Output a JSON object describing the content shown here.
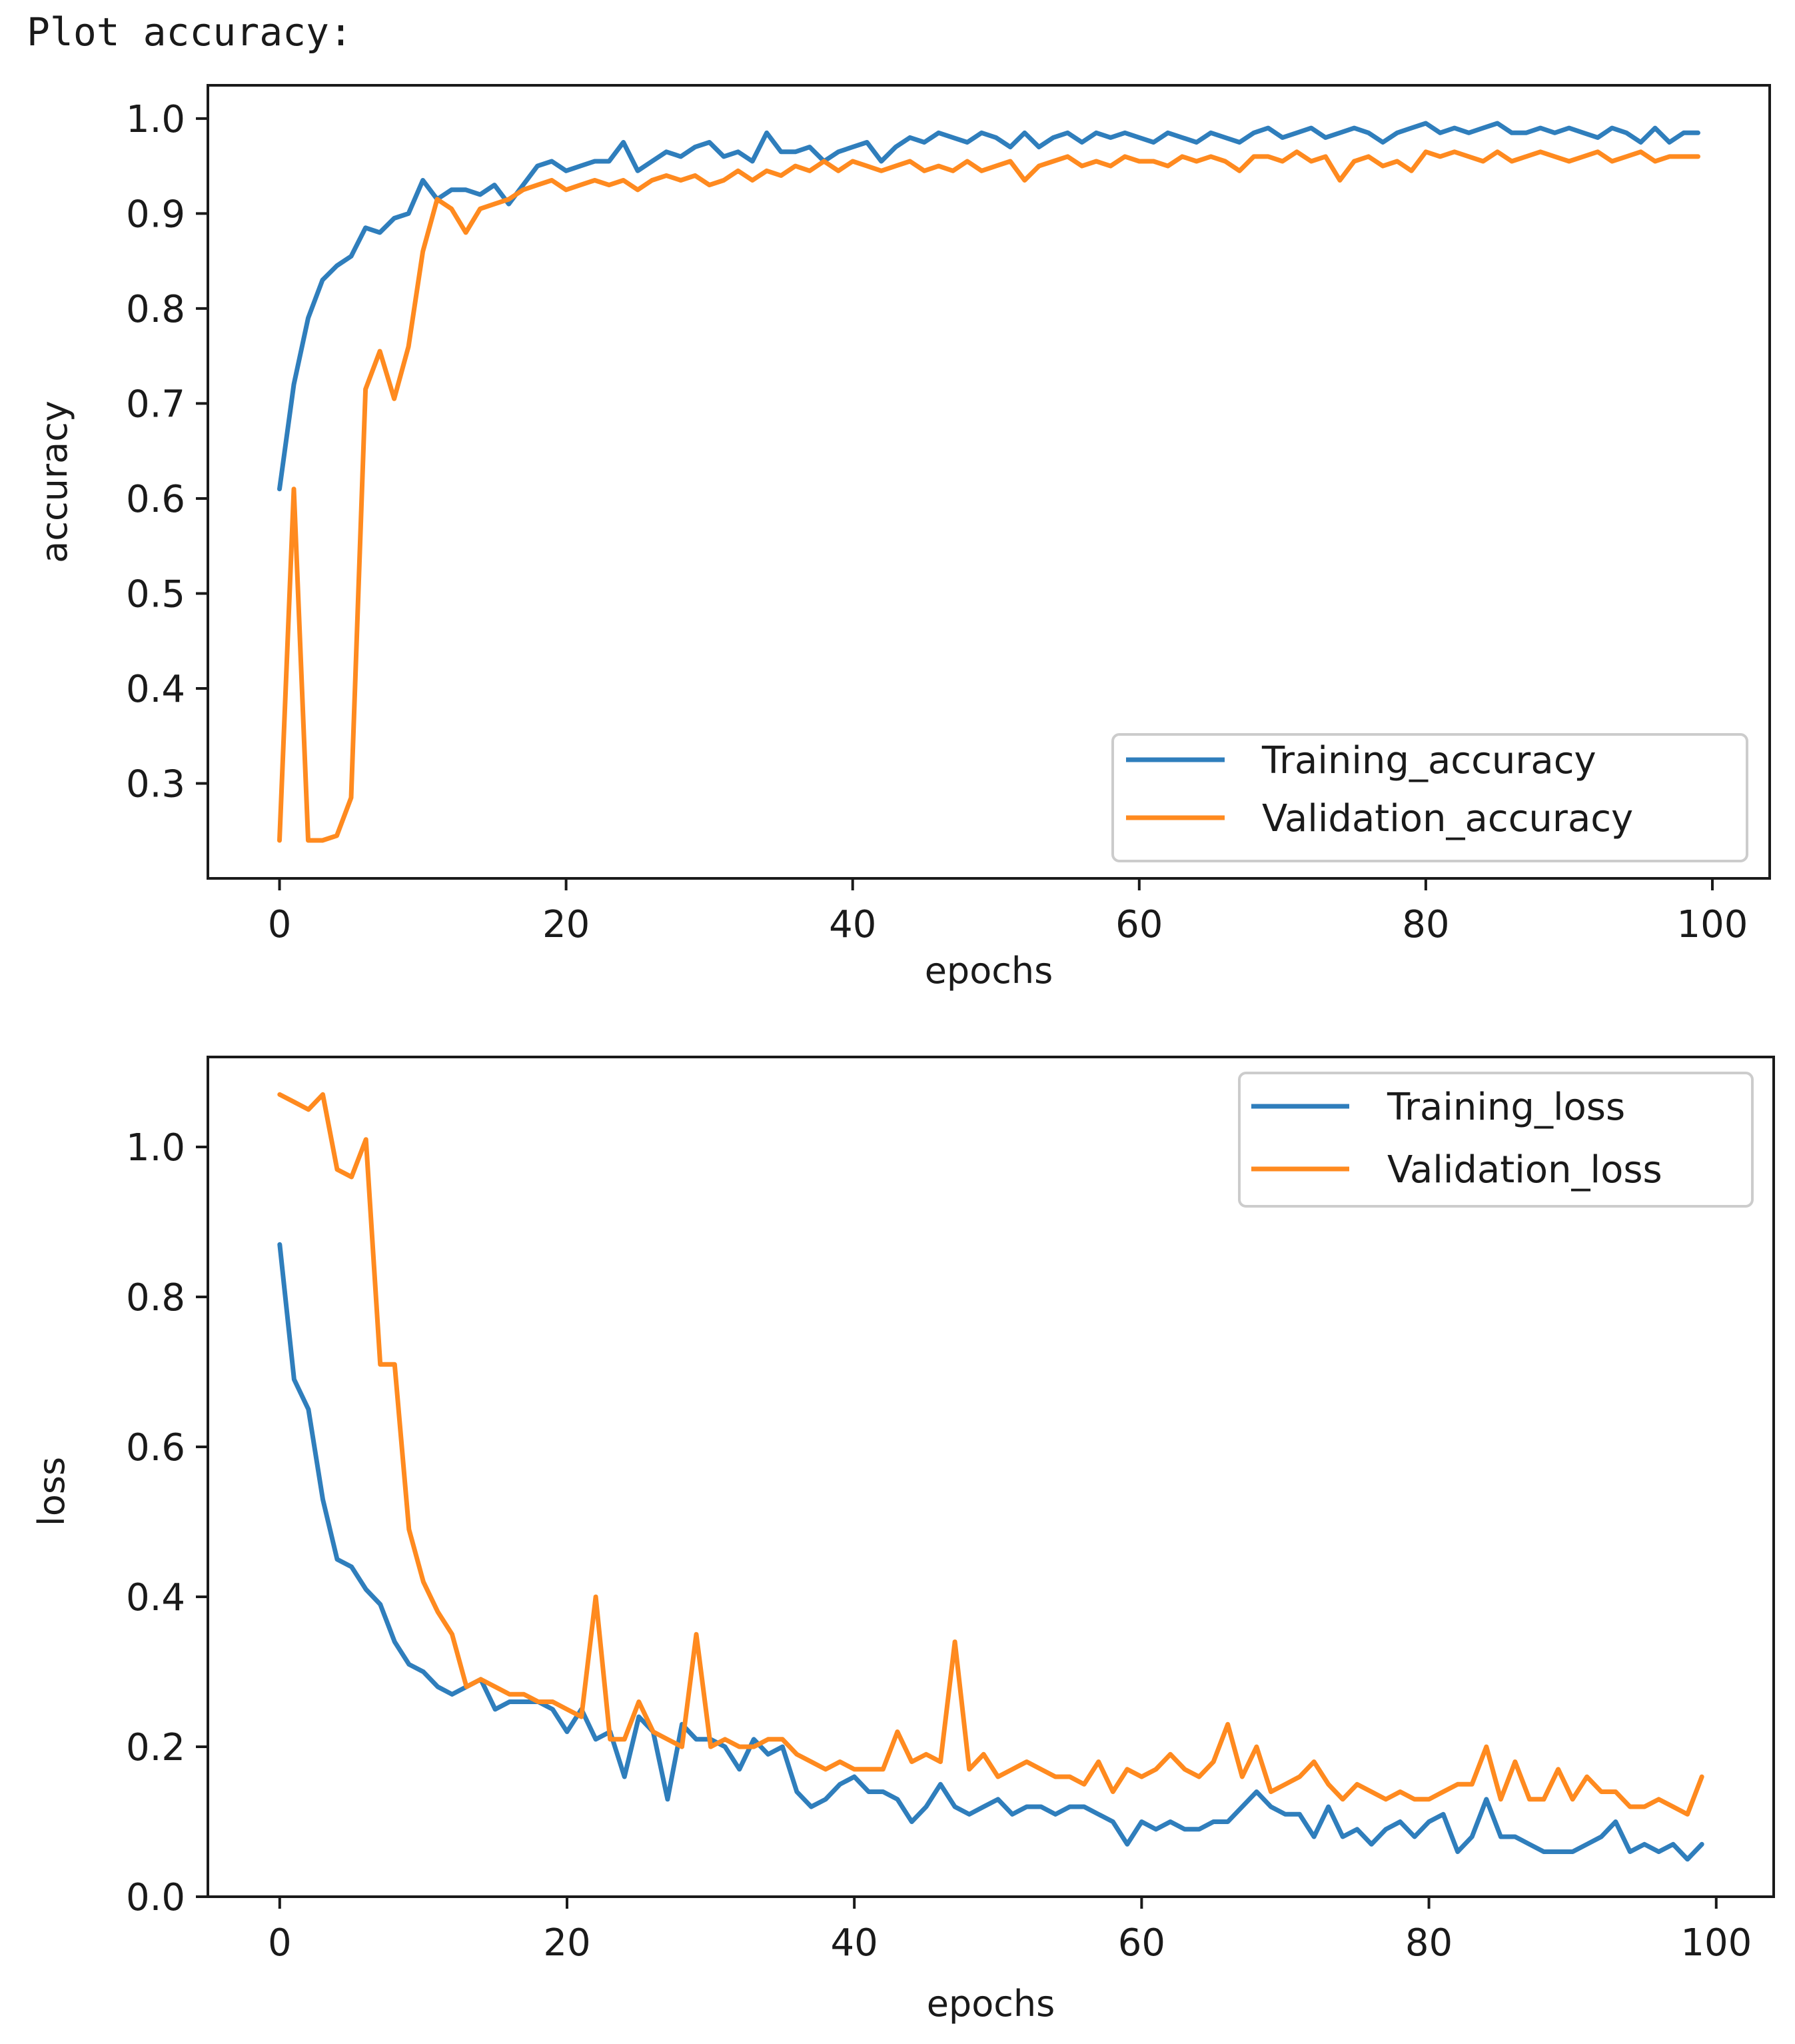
{
  "heading": "Plot accuracy:",
  "colors": {
    "training": "#2f7ebc",
    "validation": "#ff8a1f"
  },
  "chart_data": [
    {
      "id": "accuracy",
      "type": "line",
      "title": "",
      "xlabel": "epochs",
      "ylabel": "accuracy",
      "xlim": [
        -5,
        104
      ],
      "ylim": [
        0.2,
        1.035
      ],
      "xticks": [
        0,
        20,
        40,
        60,
        80,
        100
      ],
      "yticks": [
        0.3,
        0.4,
        0.5,
        0.6,
        0.7,
        0.8,
        0.9,
        1.0
      ],
      "legend_position": "lower-right",
      "series": [
        {
          "name": "Training_accuracy",
          "color_key": "training",
          "values": [
            0.61,
            0.72,
            0.79,
            0.83,
            0.845,
            0.855,
            0.885,
            0.88,
            0.895,
            0.9,
            0.935,
            0.915,
            0.925,
            0.925,
            0.92,
            0.93,
            0.91,
            0.93,
            0.95,
            0.955,
            0.945,
            0.95,
            0.955,
            0.955,
            0.975,
            0.945,
            0.955,
            0.965,
            0.96,
            0.97,
            0.975,
            0.96,
            0.965,
            0.955,
            0.985,
            0.965,
            0.965,
            0.97,
            0.955,
            0.965,
            0.97,
            0.975,
            0.955,
            0.97,
            0.98,
            0.975,
            0.985,
            0.98,
            0.975,
            0.985,
            0.98,
            0.97,
            0.985,
            0.97,
            0.98,
            0.985,
            0.975,
            0.985,
            0.98,
            0.985,
            0.98,
            0.975,
            0.985,
            0.98,
            0.975,
            0.985,
            0.98,
            0.975,
            0.985,
            0.99,
            0.98,
            0.985,
            0.99,
            0.98,
            0.985,
            0.99,
            0.985,
            0.975,
            0.985,
            0.99,
            0.995,
            0.985,
            0.99,
            0.985,
            0.99,
            0.995,
            0.985,
            0.985,
            0.99,
            0.985,
            0.99,
            0.985,
            0.98,
            0.99,
            0.985,
            0.975,
            0.99,
            0.975,
            0.985,
            0.985
          ]
        },
        {
          "name": "Validation_accuracy",
          "color_key": "validation",
          "values": [
            0.24,
            0.61,
            0.24,
            0.24,
            0.245,
            0.285,
            0.715,
            0.755,
            0.705,
            0.76,
            0.86,
            0.915,
            0.905,
            0.88,
            0.905,
            0.91,
            0.915,
            0.925,
            0.93,
            0.935,
            0.925,
            0.93,
            0.935,
            0.93,
            0.935,
            0.925,
            0.935,
            0.94,
            0.935,
            0.94,
            0.93,
            0.935,
            0.945,
            0.935,
            0.945,
            0.94,
            0.95,
            0.945,
            0.955,
            0.945,
            0.955,
            0.95,
            0.945,
            0.95,
            0.955,
            0.945,
            0.95,
            0.945,
            0.955,
            0.945,
            0.95,
            0.955,
            0.935,
            0.95,
            0.955,
            0.96,
            0.95,
            0.955,
            0.95,
            0.96,
            0.955,
            0.955,
            0.95,
            0.96,
            0.955,
            0.96,
            0.955,
            0.945,
            0.96,
            0.96,
            0.955,
            0.965,
            0.955,
            0.96,
            0.935,
            0.955,
            0.96,
            0.95,
            0.955,
            0.945,
            0.965,
            0.96,
            0.965,
            0.96,
            0.955,
            0.965,
            0.955,
            0.96,
            0.965,
            0.96,
            0.955,
            0.96,
            0.965,
            0.955,
            0.96,
            0.965,
            0.955,
            0.96,
            0.96,
            0.96
          ]
        }
      ]
    },
    {
      "id": "loss",
      "type": "line",
      "title": "",
      "xlabel": "epochs",
      "ylabel": "loss",
      "xlim": [
        -5,
        104
      ],
      "ylim": [
        0.0,
        1.12
      ],
      "xticks": [
        0,
        20,
        40,
        60,
        80,
        100
      ],
      "yticks": [
        0.0,
        0.2,
        0.4,
        0.6,
        0.8,
        1.0
      ],
      "legend_position": "upper-right",
      "series": [
        {
          "name": "Training_loss",
          "color_key": "training",
          "values": [
            0.87,
            0.69,
            0.65,
            0.53,
            0.45,
            0.44,
            0.41,
            0.39,
            0.34,
            0.31,
            0.3,
            0.28,
            0.27,
            0.28,
            0.29,
            0.25,
            0.26,
            0.26,
            0.26,
            0.25,
            0.22,
            0.25,
            0.21,
            0.22,
            0.16,
            0.24,
            0.22,
            0.13,
            0.23,
            0.21,
            0.21,
            0.2,
            0.17,
            0.21,
            0.19,
            0.2,
            0.14,
            0.12,
            0.13,
            0.15,
            0.16,
            0.14,
            0.14,
            0.13,
            0.1,
            0.12,
            0.15,
            0.12,
            0.11,
            0.12,
            0.13,
            0.11,
            0.12,
            0.12,
            0.11,
            0.12,
            0.12,
            0.11,
            0.1,
            0.07,
            0.1,
            0.09,
            0.1,
            0.09,
            0.09,
            0.1,
            0.1,
            0.12,
            0.14,
            0.12,
            0.11,
            0.11,
            0.08,
            0.12,
            0.08,
            0.09,
            0.07,
            0.09,
            0.1,
            0.08,
            0.1,
            0.11,
            0.06,
            0.08,
            0.13,
            0.08,
            0.08,
            0.07,
            0.06,
            0.06,
            0.06,
            0.07,
            0.08,
            0.1,
            0.06,
            0.07,
            0.06,
            0.07,
            0.05,
            0.07
          ]
        },
        {
          "name": "Validation_loss",
          "color_key": "validation",
          "values": [
            1.07,
            1.06,
            1.05,
            1.07,
            0.97,
            0.96,
            1.01,
            0.71,
            0.71,
            0.49,
            0.42,
            0.38,
            0.35,
            0.28,
            0.29,
            0.28,
            0.27,
            0.27,
            0.26,
            0.26,
            0.25,
            0.24,
            0.4,
            0.21,
            0.21,
            0.26,
            0.22,
            0.21,
            0.2,
            0.35,
            0.2,
            0.21,
            0.2,
            0.2,
            0.21,
            0.21,
            0.19,
            0.18,
            0.17,
            0.18,
            0.17,
            0.17,
            0.17,
            0.22,
            0.18,
            0.19,
            0.18,
            0.34,
            0.17,
            0.19,
            0.16,
            0.17,
            0.18,
            0.17,
            0.16,
            0.16,
            0.15,
            0.18,
            0.14,
            0.17,
            0.16,
            0.17,
            0.19,
            0.17,
            0.16,
            0.18,
            0.23,
            0.16,
            0.2,
            0.14,
            0.15,
            0.16,
            0.18,
            0.15,
            0.13,
            0.15,
            0.14,
            0.13,
            0.14,
            0.13,
            0.13,
            0.14,
            0.15,
            0.15,
            0.2,
            0.13,
            0.18,
            0.13,
            0.13,
            0.17,
            0.13,
            0.16,
            0.14,
            0.14,
            0.12,
            0.12,
            0.13,
            0.12,
            0.11,
            0.16
          ]
        }
      ]
    }
  ]
}
